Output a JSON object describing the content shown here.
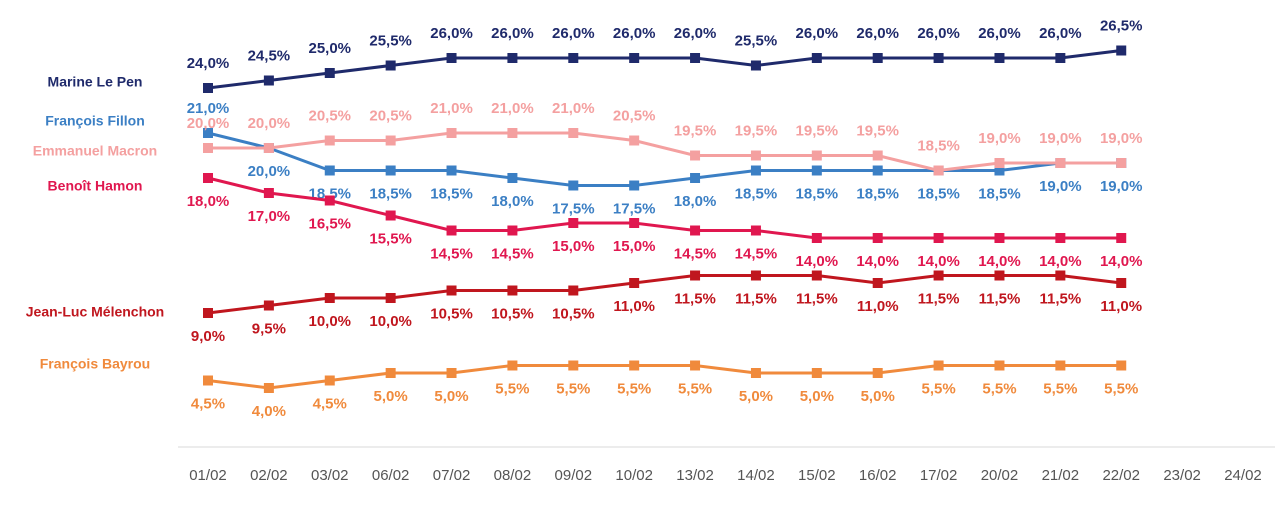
{
  "chart_data": {
    "type": "line",
    "categories": [
      "01/02",
      "02/02",
      "03/02",
      "06/02",
      "07/02",
      "08/02",
      "09/02",
      "10/02",
      "13/02",
      "14/02",
      "15/02",
      "16/02",
      "17/02",
      "20/02",
      "21/02",
      "22/02",
      "23/02",
      "24/02"
    ],
    "ylim": [
      0,
      27
    ],
    "series": [
      {
        "name": "Marine Le Pen",
        "color": "#1f2a6b",
        "values": [
          24,
          24.5,
          25,
          25.5,
          26,
          26,
          26,
          26,
          26,
          25.5,
          26,
          26,
          26,
          26,
          26,
          26.5,
          null,
          null
        ],
        "value_labels": [
          "24,0%",
          "24,5%",
          "25,0%",
          "25,5%",
          "26,0%",
          "26,0%",
          "26,0%",
          "26,0%",
          "26,0%",
          "25,5%",
          "26,0%",
          "26,0%",
          "26,0%",
          "26,0%",
          "26,0%",
          "26,5%",
          null,
          null
        ]
      },
      {
        "name": "François Fillon",
        "color": "#3b7fc4",
        "values": [
          21,
          20,
          18.5,
          18.5,
          18.5,
          18,
          17.5,
          17.5,
          18,
          18.5,
          18.5,
          18.5,
          18.5,
          18.5,
          19,
          19,
          null,
          null
        ],
        "value_labels": [
          "21,0%",
          "20,0%",
          "18,5%",
          "18,5%",
          "18,5%",
          "18,0%",
          "17,5%",
          "17,5%",
          "18,0%",
          "18,5%",
          "18,5%",
          "18,5%",
          "18,5%",
          "18,5%",
          "19,0%",
          "19,0%",
          null,
          null
        ]
      },
      {
        "name": "Emmanuel Macron",
        "color": "#f4a0a0",
        "values": [
          20,
          20,
          20.5,
          20.5,
          21,
          21,
          21,
          20.5,
          19.5,
          19.5,
          19.5,
          19.5,
          18.5,
          19,
          19,
          19,
          null,
          null
        ],
        "value_labels": [
          "20,0%",
          "20,0%",
          "20,5%",
          "20,5%",
          "21,0%",
          "21,0%",
          "21,0%",
          "20,5%",
          "19,5%",
          "19,5%",
          "19,5%",
          "19,5%",
          "18,5%",
          "19,0%",
          "19,0%",
          "19,0%",
          null,
          null
        ]
      },
      {
        "name": "Benoît Hamon",
        "color": "#e0174f",
        "values": [
          18,
          17,
          16.5,
          15.5,
          14.5,
          14.5,
          15,
          15,
          14.5,
          14.5,
          14,
          14,
          14,
          14,
          14,
          14,
          null,
          null
        ],
        "value_labels": [
          "18,0%",
          "17,0%",
          "16,5%",
          "15,5%",
          "14,5%",
          "14,5%",
          "15,0%",
          "15,0%",
          "14,5%",
          "14,5%",
          "14,0%",
          "14,0%",
          "14,0%",
          "14,0%",
          "14,0%",
          "14,0%",
          null,
          null
        ]
      },
      {
        "name": "Jean-Luc Mélenchon",
        "color": "#c0161e",
        "values": [
          9,
          9.5,
          10,
          10,
          10.5,
          10.5,
          10.5,
          11,
          11.5,
          11.5,
          11.5,
          11,
          11.5,
          11.5,
          11.5,
          11,
          null,
          null
        ],
        "value_labels": [
          "9,0%",
          "9,5%",
          "10,0%",
          "10,0%",
          "10,5%",
          "10,5%",
          "10,5%",
          "11,0%",
          "11,5%",
          "11,5%",
          "11,5%",
          "11,0%",
          "11,5%",
          "11,5%",
          "11,5%",
          "11,0%",
          null,
          null
        ]
      },
      {
        "name": "François Bayrou",
        "color": "#f08a3c",
        "values": [
          4.5,
          4,
          4.5,
          5,
          5,
          5.5,
          5.5,
          5.5,
          5.5,
          5,
          5,
          5,
          5.5,
          5.5,
          5.5,
          5.5,
          null,
          null
        ],
        "value_labels": [
          "4,5%",
          "4,0%",
          "4,5%",
          "5,0%",
          "5,0%",
          "5,5%",
          "5,5%",
          "5,5%",
          "5,5%",
          "5,0%",
          "5,0%",
          "5,0%",
          "5,5%",
          "5,5%",
          "5,5%",
          "5,5%",
          null,
          null
        ]
      }
    ]
  }
}
